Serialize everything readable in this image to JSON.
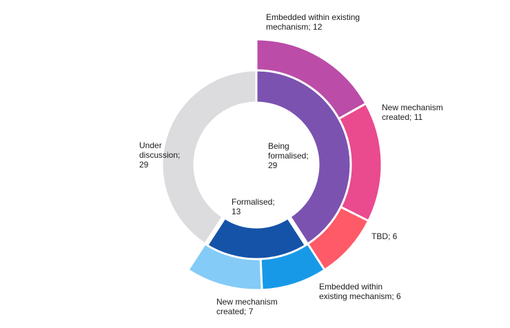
{
  "chart_data": {
    "type": "sunburst",
    "title": "",
    "inner": [
      {
        "name": "Being formalised",
        "value": 29,
        "label": "Being\nformalised;\n29",
        "color": "#7b52b0"
      },
      {
        "name": "Formalised",
        "value": 13,
        "label": "Formalised;\n13",
        "color": "#1453a8"
      },
      {
        "name": "Under discussion",
        "value": 29,
        "label": "Under\ndiscussion;\n29",
        "color": "#dcdcde"
      }
    ],
    "outer": [
      {
        "parent": "Being formalised",
        "name": "Embedded within existing mechanism",
        "value": 12,
        "label": "Embedded within existing\nmechanism; 12",
        "color": "#bb4ca8"
      },
      {
        "parent": "Being formalised",
        "name": "New mechanism created",
        "value": 11,
        "label": "New mechanism\ncreated; 11",
        "color": "#ea4a8e"
      },
      {
        "parent": "Being formalised",
        "name": "TBD",
        "value": 6,
        "label": "TBD; 6",
        "color": "#fe5a67"
      },
      {
        "parent": "Formalised",
        "name": "Embedded within existing mechanism",
        "value": 6,
        "label": "Embedded within\nexisting mechanism; 6",
        "color": "#1899e8"
      },
      {
        "parent": "Formalised",
        "name": "New mechanism created",
        "value": 7,
        "label": "New mechanism\ncreated; 7",
        "color": "#84cbf7"
      }
    ]
  }
}
